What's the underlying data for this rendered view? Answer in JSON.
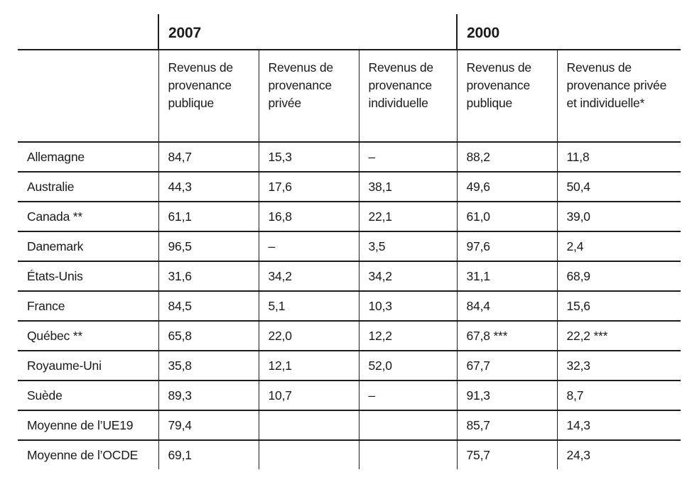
{
  "table": {
    "year_groups": [
      {
        "label": "2007",
        "colspan": 3
      },
      {
        "label": "2000",
        "colspan": 2
      }
    ],
    "columns": [
      "Revenus de provenance publique",
      "Revenus de provenance privée",
      "Revenus de provenance individuelle",
      "Revenus de provenance publique",
      "Revenus de provenance privée et individuelle*"
    ],
    "rows": [
      {
        "label": "Allemagne",
        "values": [
          "84,7",
          "15,3",
          "–",
          "88,2",
          "11,8"
        ]
      },
      {
        "label": "Australie",
        "values": [
          "44,3",
          "17,6",
          "38,1",
          "49,6",
          "50,4"
        ]
      },
      {
        "label": "Canada **",
        "values": [
          "61,1",
          "16,8",
          "22,1",
          "61,0",
          "39,0"
        ]
      },
      {
        "label": "Danemark",
        "values": [
          "96,5",
          "–",
          "3,5",
          "97,6",
          "2,4"
        ]
      },
      {
        "label": "États-Unis",
        "values": [
          "31,6",
          "34,2",
          "34,2",
          "31,1",
          "68,9"
        ]
      },
      {
        "label": "France",
        "values": [
          "84,5",
          "5,1",
          "10,3",
          "84,4",
          "15,6"
        ]
      },
      {
        "label": "Québec **",
        "values": [
          "65,8",
          "22,0",
          "12,2",
          "67,8 ***",
          "22,2 ***"
        ]
      },
      {
        "label": "Royaume-Uni",
        "values": [
          "35,8",
          "12,1",
          "52,0",
          "67,7",
          "32,3"
        ]
      },
      {
        "label": "Suède",
        "values": [
          "89,3",
          "10,7",
          "–",
          "91,3",
          "8,7"
        ]
      },
      {
        "label": "Moyenne de l’UE19",
        "values": [
          "79,4",
          "",
          "",
          "85,7",
          "14,3"
        ]
      },
      {
        "label": "Moyenne de l’OCDE",
        "values": [
          "69,1",
          "",
          "",
          "75,7",
          "24,3"
        ]
      }
    ]
  }
}
